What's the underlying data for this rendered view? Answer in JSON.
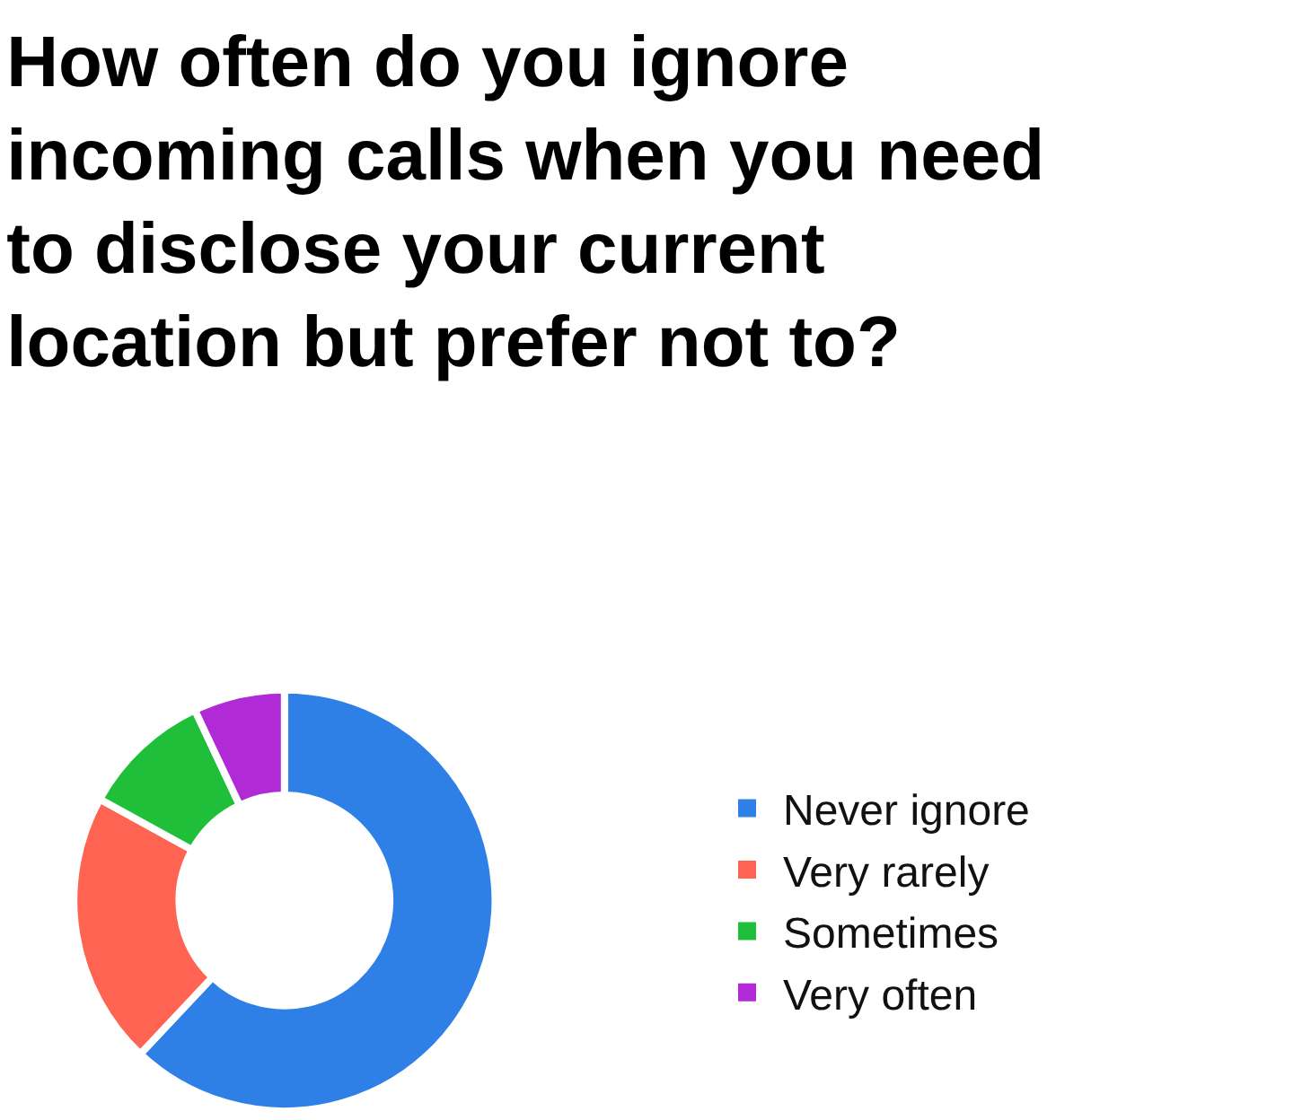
{
  "chart_data": {
    "type": "donut",
    "title": "How often do you ignore incoming calls when you need to disclose your current location but prefer not to?",
    "categories": [
      "Never ignore",
      "Very rarely",
      "Sometimes",
      "Very often"
    ],
    "values": [
      62,
      21,
      10,
      7
    ],
    "colors": [
      "#2f80e6",
      "#ff6352",
      "#1fbf3a",
      "#b02bd6"
    ],
    "legend": "right"
  }
}
